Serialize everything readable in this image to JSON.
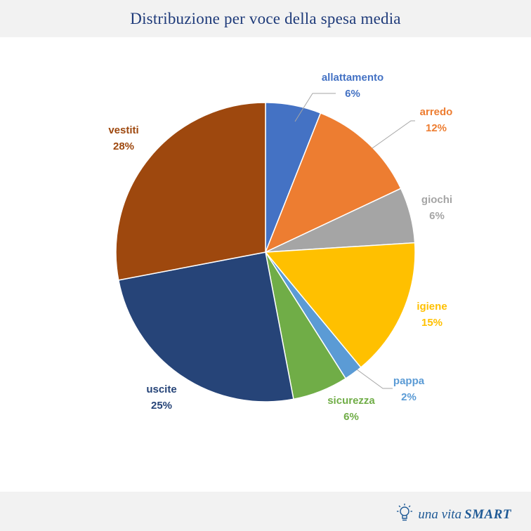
{
  "header": {
    "title": "Distribuzione per voce della spesa media"
  },
  "chart_data": {
    "type": "pie",
    "title": "Distribuzione per voce della spesa media",
    "slices": [
      {
        "label": "allattamento",
        "value": 6,
        "value_label": "6%",
        "color": "#4472c4"
      },
      {
        "label": "arredo",
        "value": 12,
        "value_label": "12%",
        "color": "#ed7d31"
      },
      {
        "label": "giochi",
        "value": 6,
        "value_label": "6%",
        "color": "#a5a5a5"
      },
      {
        "label": "igiene",
        "value": 15,
        "value_label": "15%",
        "color": "#ffc000"
      },
      {
        "label": "pappa",
        "value": 2,
        "value_label": "2%",
        "color": "#5b9bd5"
      },
      {
        "label": "sicurezza",
        "value": 6,
        "value_label": "6%",
        "color": "#70ad47"
      },
      {
        "label": "uscite",
        "value": 25,
        "value_label": "25%",
        "color": "#264478"
      },
      {
        "label": "vestiti",
        "value": 28,
        "value_label": "28%",
        "color": "#9e480e"
      }
    ]
  },
  "footer": {
    "brand_prefix": "una vita",
    "brand_suffix": "SMART",
    "brand_icon": "lightbulb-icon",
    "brand_color": "#1f5a96"
  }
}
